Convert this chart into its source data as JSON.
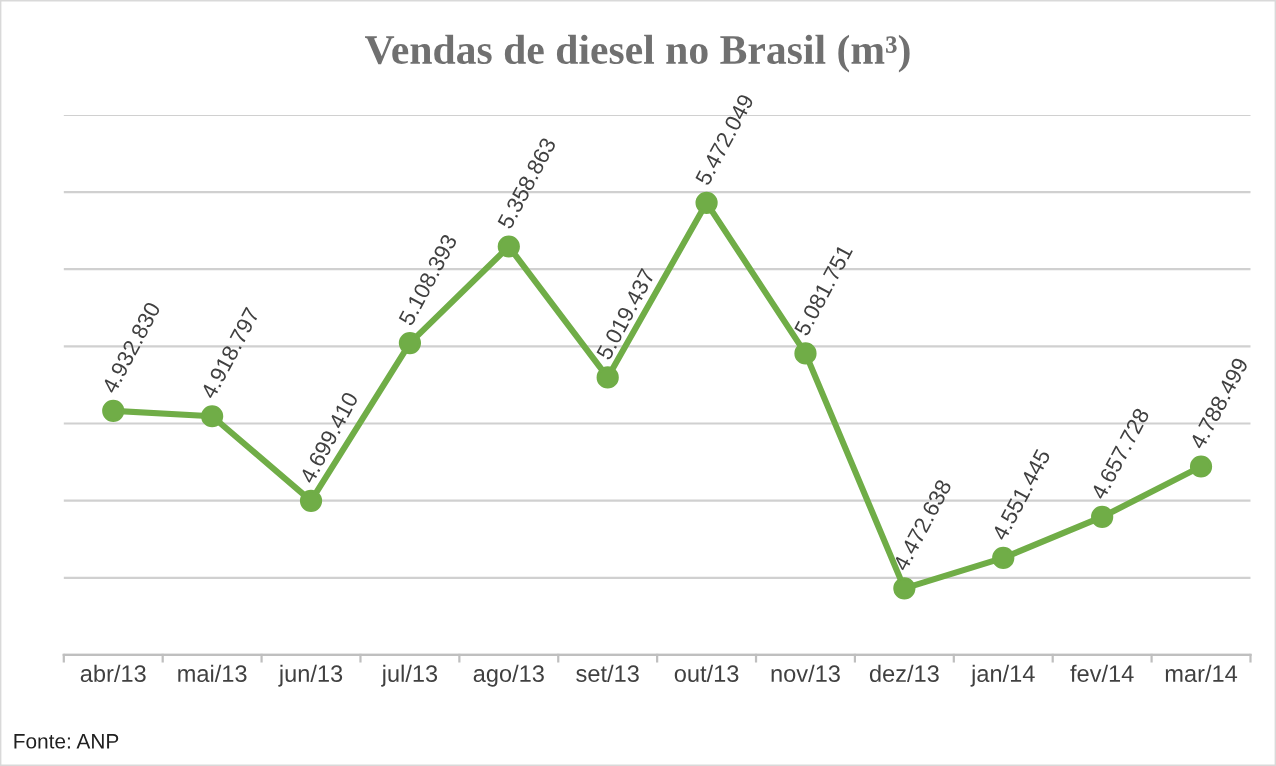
{
  "chart_data": {
    "type": "line",
    "title": "Vendas de diesel no Brasil (m³)",
    "categories": [
      "abr/13",
      "mai/13",
      "jun/13",
      "jul/13",
      "ago/13",
      "set/13",
      "out/13",
      "nov/13",
      "dez/13",
      "jan/14",
      "fev/14",
      "mar/14"
    ],
    "series": [
      {
        "color": "#70ad47",
        "values": [
          4932830,
          4918797,
          4699410,
          5108393,
          5358863,
          5019437,
          5472049,
          5081751,
          4472638,
          4551445,
          4657728,
          4788499
        ],
        "value_labels": [
          "4.932.830",
          "4.918.797",
          "4.699.410",
          "5.108.393",
          "5.358.863",
          "5.019.437",
          "5.472.049",
          "5.081.751",
          "4.472.638",
          "4.551.445",
          "4.657.728",
          "4.788.499"
        ]
      }
    ],
    "ylim": [
      4300000,
      5700000
    ],
    "yticks": [
      {
        "value": 4300000,
        "label": null
      },
      {
        "value": 4500000,
        "label": null
      },
      {
        "value": 4700000,
        "label": null
      },
      {
        "value": 4900000,
        "label": null
      },
      {
        "value": 5100000,
        "label": null
      },
      {
        "value": 5300000,
        "label": null
      },
      {
        "value": 5500000,
        "label": null
      },
      {
        "value": 5700000,
        "label": null
      }
    ],
    "tick_labels": "x",
    "grid": "y",
    "marker": "circle",
    "line_style": "solid",
    "annotations": [
      "Fonte: ANP"
    ]
  }
}
